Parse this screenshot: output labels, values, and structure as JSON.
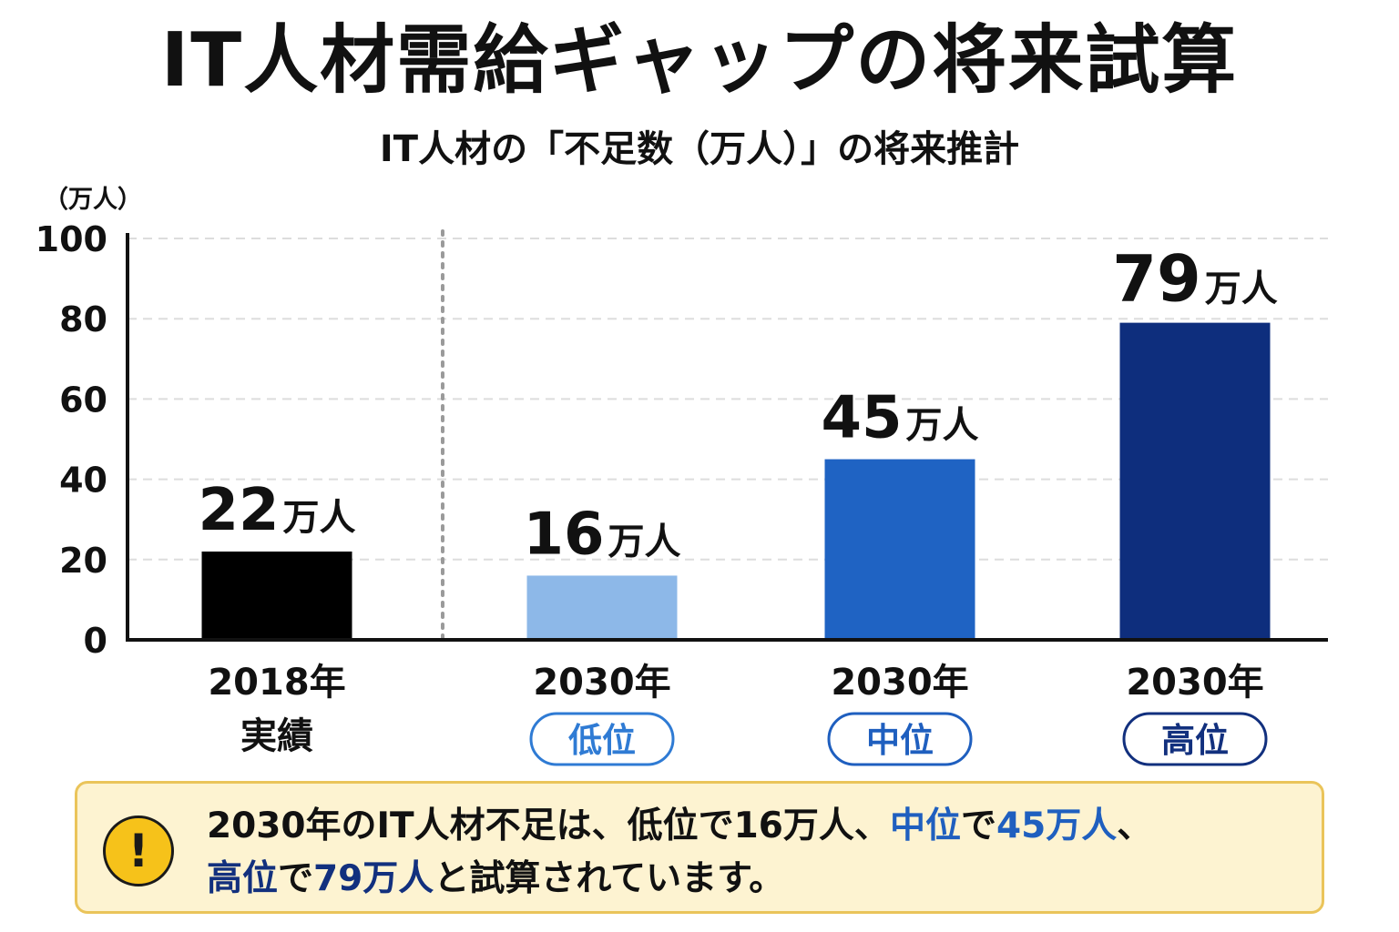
{
  "title": "IT人材需給ギャップの将来試算",
  "subtitle": "IT人材の「不足数（万人）」の将来推計",
  "chart_data": {
    "type": "bar",
    "ylabel": "（万人）",
    "ylim": [
      0,
      100
    ],
    "yticks": [
      0,
      20,
      40,
      60,
      80,
      100
    ],
    "grid": true,
    "value_unit": "万人",
    "bars": [
      {
        "value": 22,
        "year": "2018年",
        "sublabel": "実績",
        "tag": "",
        "color": "#000000",
        "tag_color": ""
      },
      {
        "value": 16,
        "year": "2030年",
        "sublabel": "",
        "tag": "低位",
        "color": "#8db8e8",
        "tag_color": "#2f7bd4"
      },
      {
        "value": 45,
        "year": "2030年",
        "sublabel": "",
        "tag": "中位",
        "color": "#1f63c3",
        "tag_color": "#1f5fbf"
      },
      {
        "value": 79,
        "year": "2030年",
        "sublabel": "",
        "tag": "高位",
        "color": "#0e2e7d",
        "tag_color": "#12307e"
      }
    ]
  },
  "callout": {
    "icon": "exclamation-icon",
    "icon_glyph": "!",
    "p1": "2030年のIT人材不足は、低位で16万人、",
    "p2": "中位",
    "p3": "で",
    "p4": "45万人",
    "p5": "、",
    "p6": "高位",
    "p7": "で",
    "p8": "79万人",
    "p9": "と試算されています。"
  }
}
